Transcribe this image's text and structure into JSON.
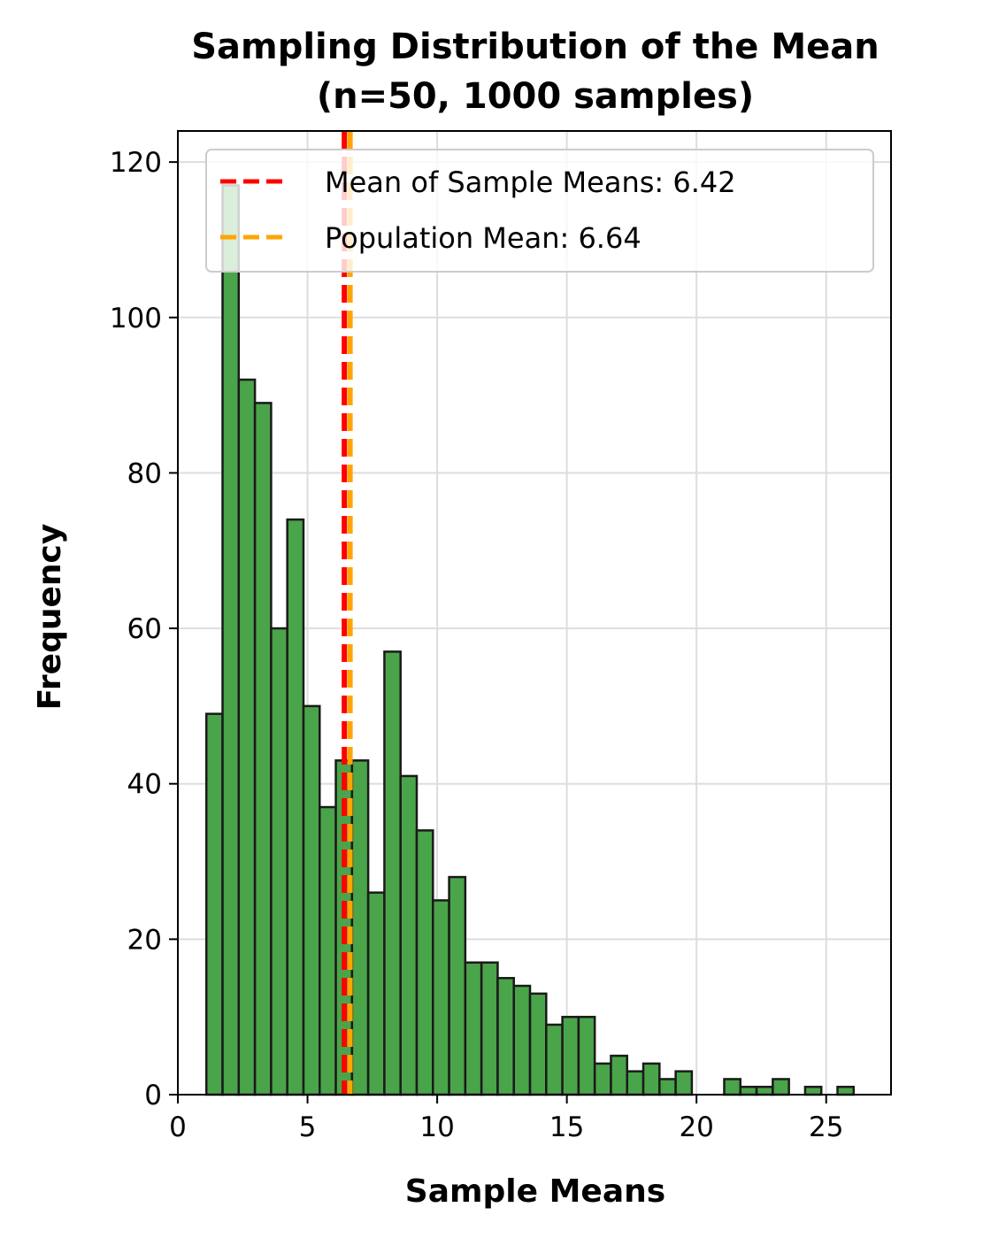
{
  "chart_data": {
    "type": "bar",
    "title": "Sampling Distribution of the Mean",
    "subtitle": "(n=50, 1000 samples)",
    "xlabel": "Sample Means",
    "ylabel": "Frequency",
    "xlim": [
      0,
      27.5
    ],
    "ylim": [
      0,
      124
    ],
    "xticks": [
      0,
      5,
      10,
      15,
      20,
      25
    ],
    "yticks": [
      0,
      20,
      40,
      60,
      80,
      100,
      120
    ],
    "grid": true,
    "bin_start": 1.1,
    "bin_width": 0.624,
    "counts": [
      49,
      117,
      92,
      89,
      60,
      74,
      50,
      37,
      43,
      43,
      26,
      57,
      41,
      34,
      25,
      28,
      17,
      17,
      15,
      14,
      13,
      9,
      10,
      10,
      4,
      5,
      3,
      4,
      2,
      3,
      0,
      0,
      2,
      1,
      1,
      2,
      0,
      1,
      0,
      1
    ],
    "bar_color": "#4aa44a",
    "bar_edge_color": "#1a1a1a",
    "vlines": [
      {
        "label": "Mean of Sample Means: 6.42",
        "x": 6.42,
        "color": "#ff0000"
      },
      {
        "label": "Population Mean: 6.64",
        "x": 6.64,
        "color": "#ffa500"
      }
    ],
    "legend_position": "top-right"
  }
}
